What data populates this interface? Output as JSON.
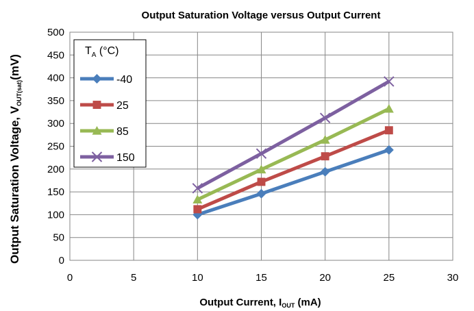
{
  "chart_data": {
    "type": "line",
    "title": "Output Saturation Voltage versus Output Current",
    "xlabel": {
      "main": "Output Current, I",
      "sub": "OUT",
      "unit": " (mA)"
    },
    "ylabel": {
      "main": "Output Saturation Voltage, V",
      "sub": "OUT(sat)",
      "unit": "(mV)"
    },
    "xlim": [
      0,
      30
    ],
    "ylim": [
      0,
      500
    ],
    "xticks": [
      0,
      5,
      10,
      15,
      20,
      25,
      30
    ],
    "yticks": [
      0,
      50,
      100,
      150,
      200,
      250,
      300,
      350,
      400,
      450,
      500
    ],
    "grid": true,
    "legend": {
      "title_main": "T",
      "title_sub": "A",
      "title_unit": " (°C)",
      "placement": "top-left"
    },
    "series": [
      {
        "name": "-40",
        "color": "#4a7ebb",
        "marker": "diamond",
        "x": [
          10,
          15,
          20,
          25
        ],
        "y": [
          100,
          146,
          194,
          242
        ]
      },
      {
        "name": "25",
        "color": "#be4b48",
        "marker": "square",
        "x": [
          10,
          15,
          20,
          25
        ],
        "y": [
          112,
          172,
          228,
          285
        ]
      },
      {
        "name": "85",
        "color": "#98b954",
        "marker": "triangle",
        "x": [
          10,
          15,
          20,
          25
        ],
        "y": [
          133,
          199,
          264,
          332
        ]
      },
      {
        "name": "150",
        "color": "#7d60a0",
        "marker": "x",
        "x": [
          10,
          15,
          20,
          25
        ],
        "y": [
          158,
          234,
          312,
          392
        ]
      }
    ]
  }
}
